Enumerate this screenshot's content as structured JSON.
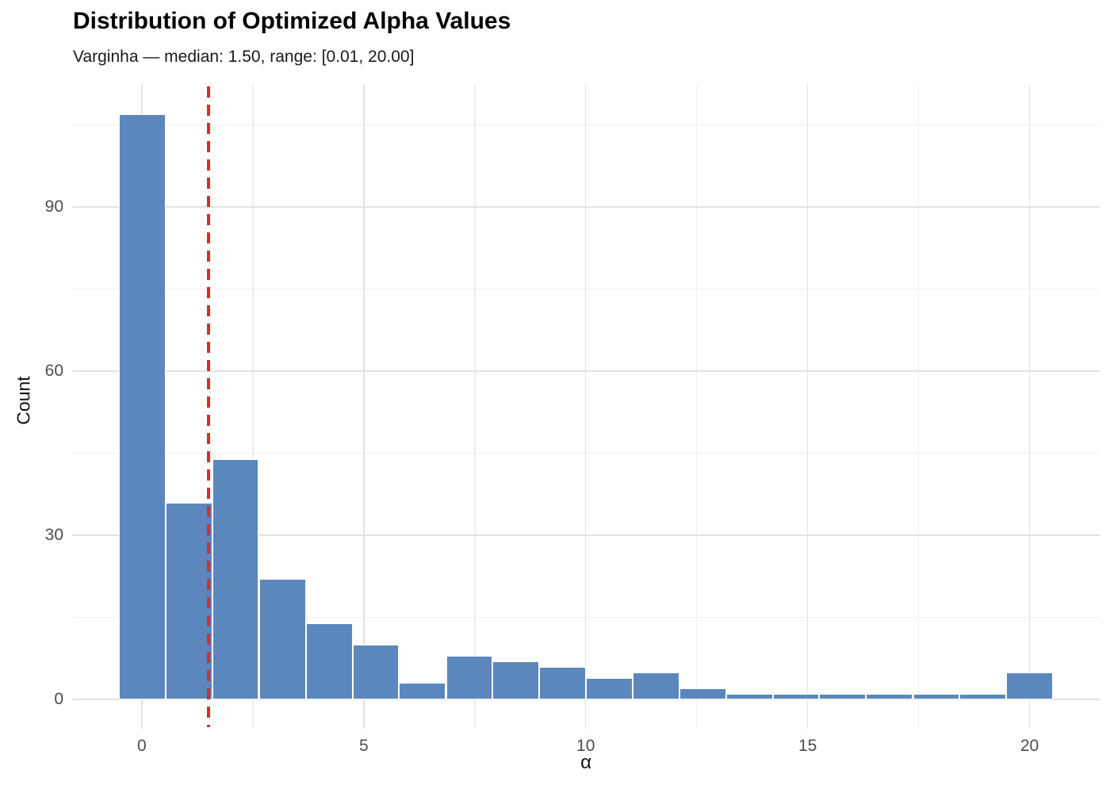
{
  "chart_data": {
    "type": "bar",
    "subtype": "histogram",
    "title": "Distribution of Optimized Alpha Values",
    "subtitle": "Varginha — median: 1.50, range: [0.01, 20.00]",
    "xlabel": "α",
    "ylabel": "Count",
    "bins": {
      "width": 1.052,
      "centers": [
        0.01,
        1.06,
        2.11,
        3.17,
        4.22,
        5.27,
        6.32,
        7.38,
        8.43,
        9.48,
        10.53,
        11.58,
        12.64,
        13.69,
        14.74,
        15.79,
        16.84,
        17.9,
        18.95,
        20.0
      ],
      "counts": [
        107,
        36,
        44,
        22,
        14,
        10,
        3,
        8,
        7,
        6,
        4,
        5,
        2,
        1,
        1,
        1,
        1,
        1,
        1,
        5
      ]
    },
    "median_line_x": 1.5,
    "axes": {
      "x": {
        "major_ticks": [
          0,
          5,
          10,
          15,
          20
        ],
        "minor_gridlines": [
          2.5,
          7.5,
          12.5,
          17.5
        ],
        "lim": [
          -1.57,
          21.58
        ]
      },
      "y": {
        "major_ticks": [
          0,
          30,
          60,
          90
        ],
        "minor_gridlines": [
          15,
          45,
          75,
          105
        ],
        "lim": [
          -5.35,
          112.35
        ]
      }
    },
    "grid": "on",
    "legend": "none",
    "colors": {
      "bar_fill": "#5b87bd",
      "bar_edge": "#ffffff",
      "median_line": "#d92b2b",
      "grid_major": "#e2e2e2",
      "grid_minor": "#eeeeee",
      "tick_label": "#4d4d4d",
      "axis_title": "#111111",
      "title": "#000000",
      "subtitle": "#1a1a1a"
    }
  }
}
